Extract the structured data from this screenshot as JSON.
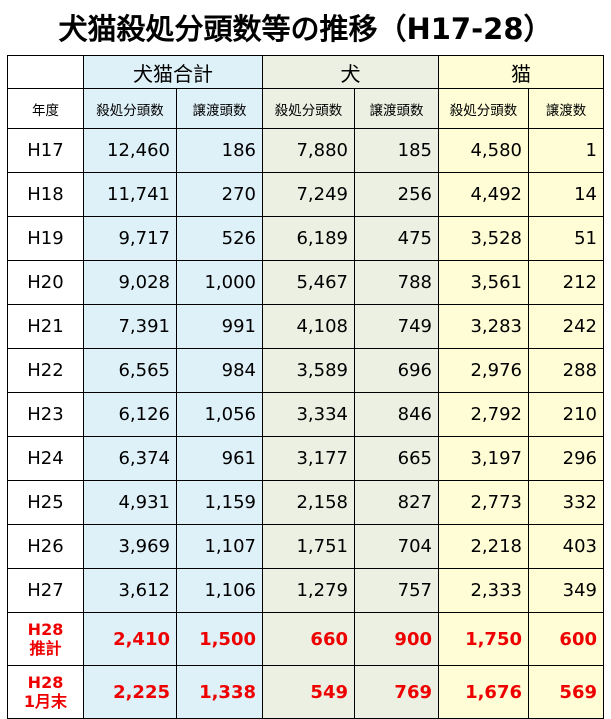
{
  "title": "犬猫殺処分頭数等の推移（H17-28）",
  "groups": {
    "total": "犬猫合計",
    "dog": "犬",
    "cat": "猫"
  },
  "subheaders": {
    "year": "年度",
    "total_killed": "殺処分頭数",
    "total_transfer": "譲渡頭数",
    "dog_killed": "殺処分頭数",
    "dog_transfer": "譲渡頭数",
    "cat_killed": "殺処分頭数",
    "cat_transfer": "譲渡数"
  },
  "rows": [
    {
      "year": "H17",
      "total_killed": "12,460",
      "total_transfer": "186",
      "dog_killed": "7,880",
      "dog_transfer": "185",
      "cat_killed": "4,580",
      "cat_transfer": "1"
    },
    {
      "year": "H18",
      "total_killed": "11,741",
      "total_transfer": "270",
      "dog_killed": "7,249",
      "dog_transfer": "256",
      "cat_killed": "4,492",
      "cat_transfer": "14"
    },
    {
      "year": "H19",
      "total_killed": "9,717",
      "total_transfer": "526",
      "dog_killed": "6,189",
      "dog_transfer": "475",
      "cat_killed": "3,528",
      "cat_transfer": "51"
    },
    {
      "year": "H20",
      "total_killed": "9,028",
      "total_transfer": "1,000",
      "dog_killed": "5,467",
      "dog_transfer": "788",
      "cat_killed": "3,561",
      "cat_transfer": "212"
    },
    {
      "year": "H21",
      "total_killed": "7,391",
      "total_transfer": "991",
      "dog_killed": "4,108",
      "dog_transfer": "749",
      "cat_killed": "3,283",
      "cat_transfer": "242"
    },
    {
      "year": "H22",
      "total_killed": "6,565",
      "total_transfer": "984",
      "dog_killed": "3,589",
      "dog_transfer": "696",
      "cat_killed": "2,976",
      "cat_transfer": "288"
    },
    {
      "year": "H23",
      "total_killed": "6,126",
      "total_transfer": "1,056",
      "dog_killed": "3,334",
      "dog_transfer": "846",
      "cat_killed": "2,792",
      "cat_transfer": "210"
    },
    {
      "year": "H24",
      "total_killed": "6,374",
      "total_transfer": "961",
      "dog_killed": "3,177",
      "dog_transfer": "665",
      "cat_killed": "3,197",
      "cat_transfer": "296"
    },
    {
      "year": "H25",
      "total_killed": "4,931",
      "total_transfer": "1,159",
      "dog_killed": "2,158",
      "dog_transfer": "827",
      "cat_killed": "2,773",
      "cat_transfer": "332"
    },
    {
      "year": "H26",
      "total_killed": "3,969",
      "total_transfer": "1,107",
      "dog_killed": "1,751",
      "dog_transfer": "704",
      "cat_killed": "2,218",
      "cat_transfer": "403"
    },
    {
      "year": "H27",
      "total_killed": "3,612",
      "total_transfer": "1,106",
      "dog_killed": "1,279",
      "dog_transfer": "757",
      "cat_killed": "2,333",
      "cat_transfer": "349"
    }
  ],
  "highlight_rows": [
    {
      "year_line1": "H28",
      "year_line2": "推計",
      "total_killed": "2,410",
      "total_transfer": "1,500",
      "dog_killed": "660",
      "dog_transfer": "900",
      "cat_killed": "1,750",
      "cat_transfer": "600"
    },
    {
      "year_line1": "H28",
      "year_line2": "1月末",
      "total_killed": "2,225",
      "total_transfer": "1,338",
      "dog_killed": "549",
      "dog_transfer": "769",
      "cat_killed": "1,676",
      "cat_transfer": "569"
    }
  ],
  "colors": {
    "total_bg": "#def0f8",
    "dog_bg": "#ecf0e2",
    "cat_bg": "#fefdd6",
    "highlight_text": "#ee0000"
  }
}
